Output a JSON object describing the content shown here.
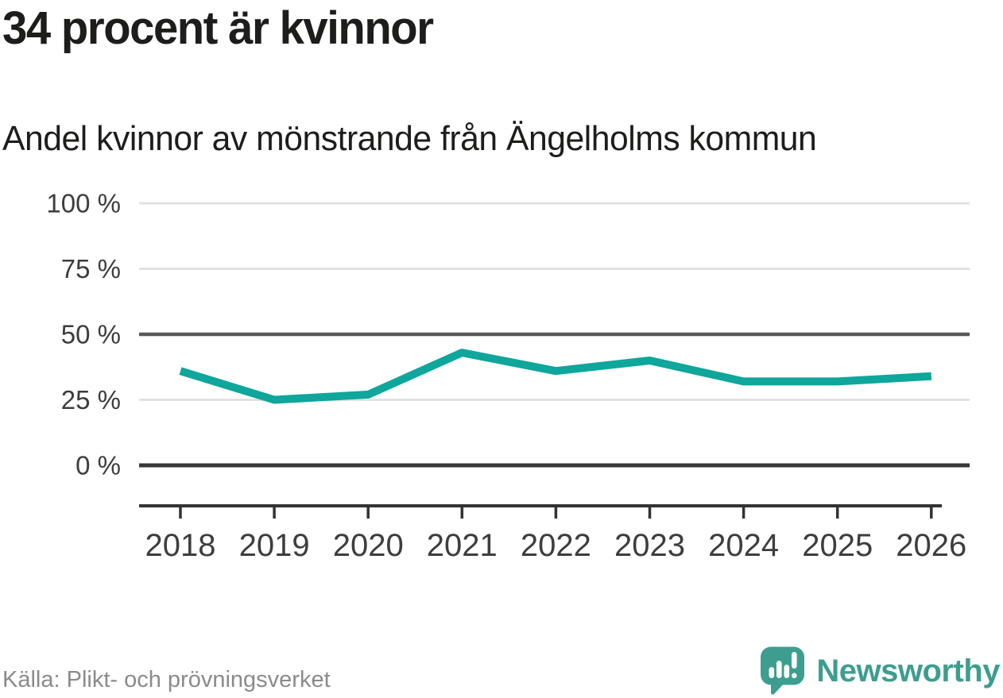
{
  "chart_data": {
    "type": "line",
    "title": "34 procent är kvinnor",
    "subtitle": "Andel kvinnor av mönstrande från Ängelholms kommun",
    "categories": [
      2018,
      2019,
      2020,
      2021,
      2022,
      2023,
      2024,
      2025,
      2026
    ],
    "series": [
      {
        "name": "Andel kvinnor av mönstrande",
        "values": [
          36,
          25,
          27,
          43,
          36,
          40,
          32,
          32,
          34
        ]
      }
    ],
    "unit": "%",
    "ylim": [
      0,
      100
    ],
    "yticks": [
      100,
      75,
      50,
      25,
      0
    ],
    "ytick_labels": [
      "100 %",
      "75 %",
      "50 %",
      "25 %",
      "0 %"
    ],
    "emphasized_gridlines": [
      50,
      0
    ],
    "grid": true,
    "legend": "none",
    "line_color": "#0fa69c"
  },
  "footer": {
    "source": "Källa: Plikt- och prövningsverket",
    "brand": "Newsworthy"
  },
  "colors": {
    "accent_teal": "#0fa69c",
    "brand_teal": "#3d9e90",
    "title_text": "#1d1d1b",
    "axis_text": "#3d3d3d",
    "muted_text": "#8b8b8b",
    "grid_light": "#e2e2e2",
    "grid_mid": "#595959",
    "grid_zero": "#383838",
    "axis_line": "#333333"
  }
}
